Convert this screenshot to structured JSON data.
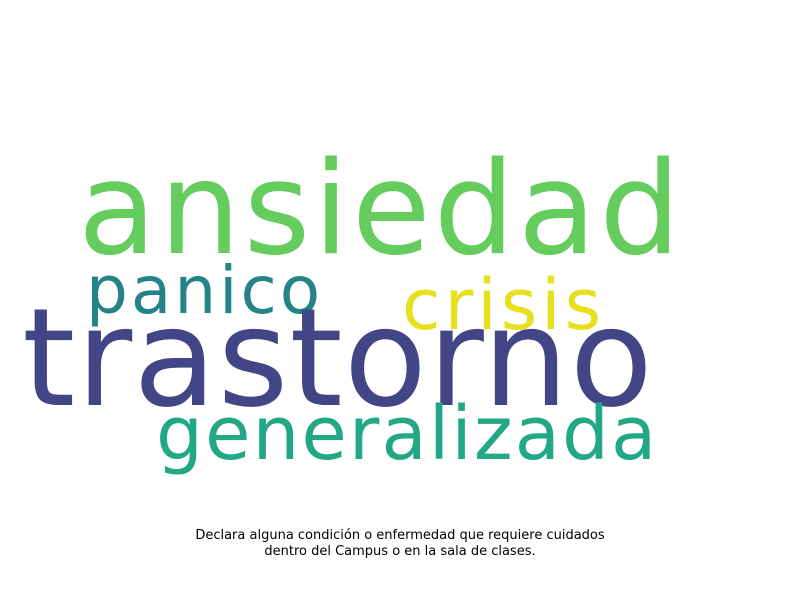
{
  "wordcloud": {
    "words": [
      {
        "text": "ansiedad",
        "color": "#65cc5e"
      },
      {
        "text": "panico",
        "color": "#238387"
      },
      {
        "text": "crisis",
        "color": "#e6e11f"
      },
      {
        "text": "trastorno",
        "color": "#424586"
      },
      {
        "text": "generalizada",
        "color": "#22a885"
      }
    ]
  },
  "caption": {
    "line1": "Declara alguna condición o enfermedad que requiere cuidados",
    "line2": "dentro del Campus o en la sala de clases."
  }
}
